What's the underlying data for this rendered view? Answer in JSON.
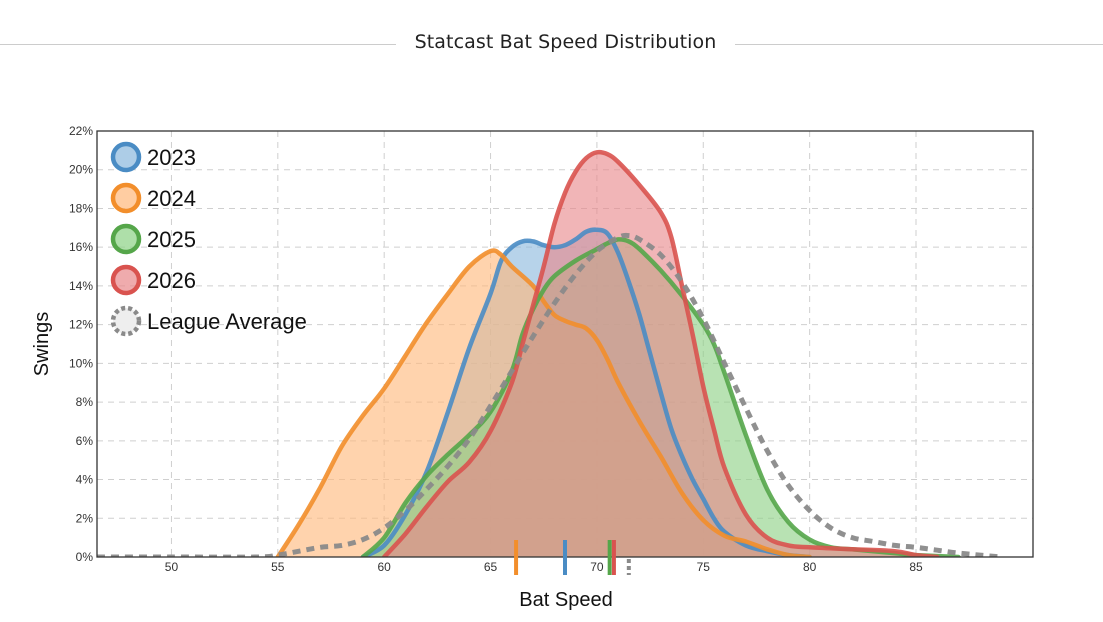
{
  "title": "Statcast Bat Speed Distribution",
  "chart_data": {
    "type": "area",
    "title": "Statcast Bat Speed Distribution",
    "xlabel": "Bat Speed",
    "ylabel": "Swings",
    "xlim": [
      46.5,
      90.5
    ],
    "ylim": [
      0,
      22
    ],
    "xticks": [
      50,
      55,
      60,
      65,
      70,
      75,
      80,
      85
    ],
    "yticks": [
      0,
      2,
      4,
      6,
      8,
      10,
      12,
      14,
      16,
      18,
      20,
      22
    ],
    "ytick_suffix": "%",
    "grid": true,
    "legend_position": "top-left",
    "series": [
      {
        "name": "2023",
        "color": "#4a8cc4",
        "fill": "#8ab8dd",
        "style": "solid",
        "mean": 68.5,
        "points": [
          [
            59,
            0
          ],
          [
            60,
            0.6
          ],
          [
            61,
            2.2
          ],
          [
            62,
            4.4
          ],
          [
            63,
            7.5
          ],
          [
            64,
            10.8
          ],
          [
            65,
            13.6
          ],
          [
            65.5,
            15.3
          ],
          [
            66,
            16.0
          ],
          [
            66.5,
            16.3
          ],
          [
            67,
            16.3
          ],
          [
            67.5,
            16.1
          ],
          [
            68,
            16.0
          ],
          [
            68.5,
            16.1
          ],
          [
            69,
            16.4
          ],
          [
            69.5,
            16.8
          ],
          [
            70,
            16.9
          ],
          [
            70.5,
            16.7
          ],
          [
            71,
            15.7
          ],
          [
            71.5,
            14.2
          ],
          [
            72,
            12.5
          ],
          [
            72.5,
            10.5
          ],
          [
            73,
            8.5
          ],
          [
            73.5,
            6.6
          ],
          [
            74,
            5.2
          ],
          [
            74.5,
            4.0
          ],
          [
            75,
            3.0
          ],
          [
            75.5,
            2.0
          ],
          [
            76,
            1.3
          ],
          [
            77,
            0.6
          ],
          [
            78,
            0.3
          ],
          [
            79,
            0.1
          ],
          [
            80,
            0
          ]
        ]
      },
      {
        "name": "2024",
        "color": "#f28e2b",
        "fill": "#ffb87a",
        "style": "solid",
        "mean": 66.2,
        "points": [
          [
            55,
            0
          ],
          [
            56,
            1.7
          ],
          [
            57,
            3.6
          ],
          [
            58,
            5.7
          ],
          [
            59,
            7.3
          ],
          [
            60,
            8.7
          ],
          [
            61,
            10.4
          ],
          [
            62,
            12.1
          ],
          [
            63,
            13.6
          ],
          [
            64,
            15.0
          ],
          [
            65,
            15.8
          ],
          [
            65.5,
            15.6
          ],
          [
            66,
            15.0
          ],
          [
            67,
            14.0
          ],
          [
            67.5,
            13.2
          ],
          [
            68,
            12.5
          ],
          [
            68.5,
            12.2
          ],
          [
            69,
            12.0
          ],
          [
            69.5,
            11.8
          ],
          [
            70,
            11.2
          ],
          [
            70.5,
            10.2
          ],
          [
            71,
            9.0
          ],
          [
            72,
            7.0
          ],
          [
            73,
            5.2
          ],
          [
            74,
            3.3
          ],
          [
            75,
            1.9
          ],
          [
            76,
            1.1
          ],
          [
            77,
            0.8
          ],
          [
            78,
            0.4
          ],
          [
            79,
            0.1
          ],
          [
            80,
            0
          ]
        ]
      },
      {
        "name": "2025",
        "color": "#55a64a",
        "fill": "#8cd184",
        "style": "solid",
        "mean": 70.6,
        "points": [
          [
            59,
            0
          ],
          [
            60,
            1.0
          ],
          [
            61,
            2.8
          ],
          [
            62,
            4.2
          ],
          [
            63,
            5.3
          ],
          [
            64,
            6.3
          ],
          [
            65,
            7.5
          ],
          [
            66,
            9.6
          ],
          [
            66.5,
            11.5
          ],
          [
            67,
            12.8
          ],
          [
            67.5,
            13.8
          ],
          [
            68,
            14.5
          ],
          [
            69,
            15.3
          ],
          [
            70,
            15.9
          ],
          [
            70.5,
            16.2
          ],
          [
            71,
            16.4
          ],
          [
            71.5,
            16.3
          ],
          [
            72,
            15.9
          ],
          [
            73,
            14.8
          ],
          [
            74,
            13.5
          ],
          [
            75,
            12.0
          ],
          [
            75.5,
            11.0
          ],
          [
            76,
            9.5
          ],
          [
            77,
            6.3
          ],
          [
            78,
            3.5
          ],
          [
            79,
            1.8
          ],
          [
            80,
            0.9
          ],
          [
            81,
            0.5
          ],
          [
            82,
            0.4
          ],
          [
            83,
            0.3
          ],
          [
            84,
            0.2
          ],
          [
            85,
            0.1
          ],
          [
            87,
            0
          ]
        ]
      },
      {
        "name": "2026",
        "color": "#d9534f",
        "fill": "#e8878a",
        "style": "solid",
        "mean": 70.8,
        "points": [
          [
            60,
            0
          ],
          [
            61,
            1.2
          ],
          [
            62,
            2.6
          ],
          [
            63,
            3.9
          ],
          [
            64,
            4.9
          ],
          [
            65,
            6.5
          ],
          [
            66,
            9.0
          ],
          [
            66.5,
            11.0
          ],
          [
            67,
            13.0
          ],
          [
            67.5,
            15.0
          ],
          [
            68,
            17.2
          ],
          [
            68.5,
            18.8
          ],
          [
            69,
            19.9
          ],
          [
            69.5,
            20.6
          ],
          [
            70,
            20.9
          ],
          [
            70.5,
            20.8
          ],
          [
            71,
            20.4
          ],
          [
            72,
            19.2
          ],
          [
            73,
            17.8
          ],
          [
            73.5,
            16.5
          ],
          [
            74,
            14.0
          ],
          [
            74.5,
            11.5
          ],
          [
            75,
            8.8
          ],
          [
            75.5,
            6.6
          ],
          [
            76,
            4.6
          ],
          [
            77,
            2.2
          ],
          [
            78,
            1.0
          ],
          [
            79,
            0.6
          ],
          [
            80,
            0.5
          ],
          [
            82,
            0.4
          ],
          [
            84,
            0.3
          ],
          [
            85,
            0.1
          ],
          [
            86,
            0
          ]
        ]
      },
      {
        "name": "League Average",
        "color": "#8a8a8a",
        "style": "dashed",
        "mean": 71.5,
        "points": [
          [
            46.5,
            0
          ],
          [
            50,
            0
          ],
          [
            54,
            0
          ],
          [
            55,
            0.1
          ],
          [
            56,
            0.3
          ],
          [
            57,
            0.5
          ],
          [
            58,
            0.6
          ],
          [
            59,
            0.9
          ],
          [
            60,
            1.5
          ],
          [
            61,
            2.4
          ],
          [
            62,
            3.5
          ],
          [
            63,
            4.7
          ],
          [
            64,
            6.1
          ],
          [
            65,
            7.8
          ],
          [
            66,
            9.6
          ],
          [
            67,
            11.4
          ],
          [
            68,
            13.1
          ],
          [
            69,
            14.6
          ],
          [
            70,
            15.8
          ],
          [
            71,
            16.5
          ],
          [
            71.5,
            16.6
          ],
          [
            72,
            16.4
          ],
          [
            73,
            15.6
          ],
          [
            74,
            14.2
          ],
          [
            75,
            12.3
          ],
          [
            76,
            10.0
          ],
          [
            77,
            7.7
          ],
          [
            78,
            5.5
          ],
          [
            79,
            3.7
          ],
          [
            80,
            2.4
          ],
          [
            81,
            1.5
          ],
          [
            82,
            1.0
          ],
          [
            83,
            0.8
          ],
          [
            84,
            0.6
          ],
          [
            85,
            0.5
          ],
          [
            86,
            0.35
          ],
          [
            87,
            0.2
          ],
          [
            88,
            0.1
          ],
          [
            89,
            0
          ]
        ]
      }
    ]
  }
}
